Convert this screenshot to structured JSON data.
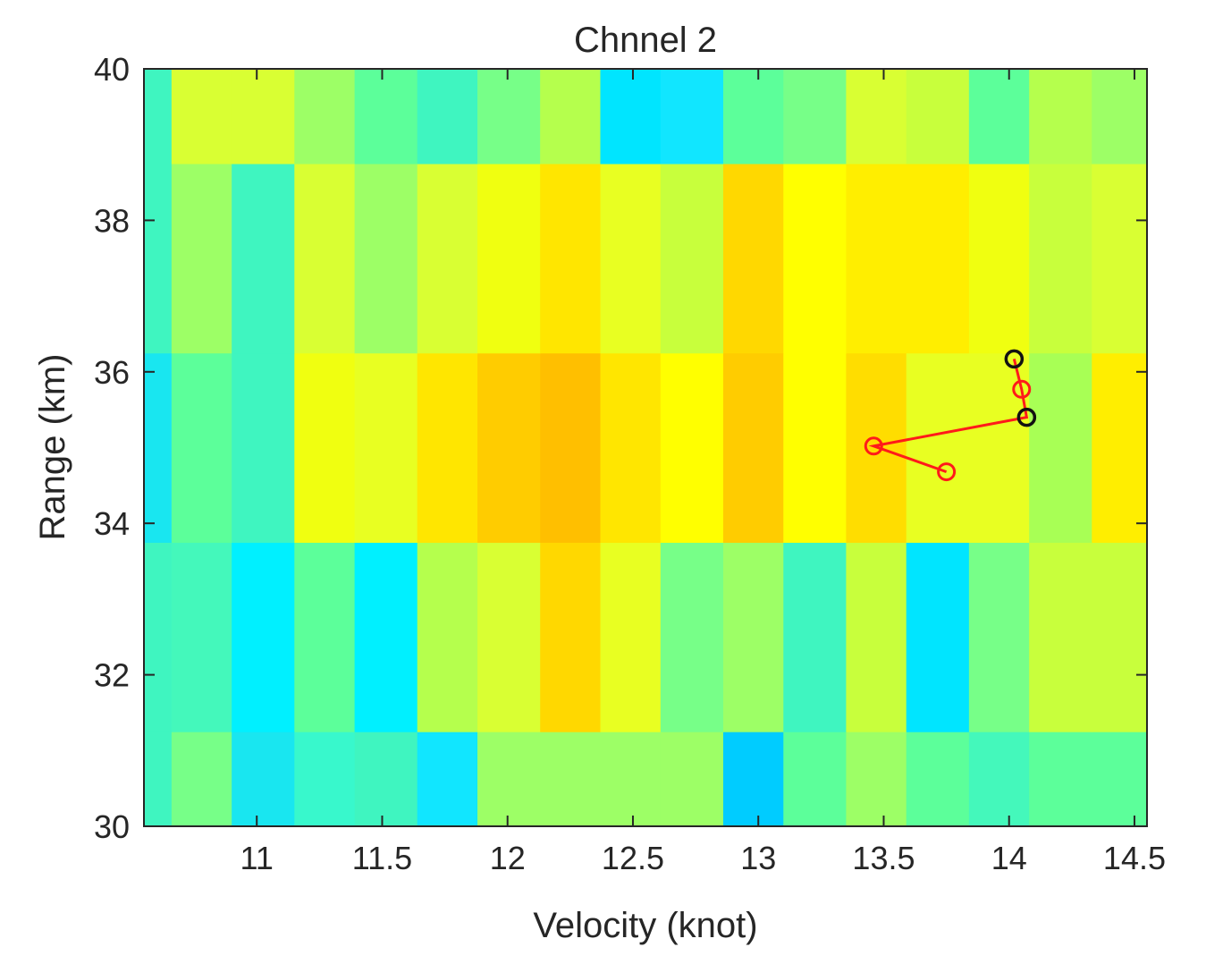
{
  "chart_data": {
    "type": "heatmap",
    "title": "Chnnel 2",
    "xlabel": "Velocity (knot)",
    "ylabel": "Range  (km)",
    "xlim": [
      10.55,
      14.55
    ],
    "ylim": [
      30,
      40
    ],
    "grid": false,
    "xticks": [
      11,
      11.5,
      12,
      12.5,
      13,
      13.5,
      14,
      14.5
    ],
    "xtick_labels": [
      "11",
      "11.5",
      "12",
      "12.5",
      "13",
      "13.5",
      "14",
      "14.5"
    ],
    "yticks": [
      30,
      32,
      34,
      36,
      38,
      40
    ],
    "ytick_labels": [
      "30",
      "32",
      "34",
      "36",
      "38",
      "40"
    ],
    "x_bin_edges": [
      10.55,
      10.66,
      10.9,
      11.15,
      11.39,
      11.64,
      11.88,
      12.13,
      12.37,
      12.61,
      12.86,
      13.1,
      13.35,
      13.59,
      13.84,
      14.08,
      14.33,
      14.55
    ],
    "y_bin_edges": [
      30,
      31.25,
      33.75,
      36.25,
      38.75,
      40
    ],
    "cell_colors": [
      [
        "#3ff5c0",
        "#77ff88",
        "#19e6f0",
        "#38f8cc",
        "#3ff5c0",
        "#11e6ff",
        "#9dff66",
        "#9dff66",
        "#9dff66",
        "#9dff66",
        "#00ccff",
        "#5cff9a",
        "#9dff66",
        "#5cff9a",
        "#44f8bb",
        "#5cff9a",
        "#5cff9a"
      ],
      [
        "#3ff5c0",
        "#44f8bb",
        "#00f0ff",
        "#5cff9a",
        "#00f0ff",
        "#b5ff4d",
        "#d9ff33",
        "#ffd800",
        "#e8ff22",
        "#77ff88",
        "#9dff66",
        "#3ff5c0",
        "#c8ff3c",
        "#00e5ff",
        "#77ff88",
        "#c8ff3c",
        "#c8ff3c"
      ],
      [
        "#19e6f0",
        "#5cff9a",
        "#3ff5c0",
        "#f0ff10",
        "#e8ff22",
        "#ffe600",
        "#ffcc00",
        "#ffbf00",
        "#ffe600",
        "#ffff00",
        "#ffcc00",
        "#ffff00",
        "#ffdd00",
        "#e8ff22",
        "#e8ff22",
        "#a8ff55",
        "#ffee00"
      ],
      [
        "#3ff5c0",
        "#9dff66",
        "#3ff5c0",
        "#d9ff33",
        "#9dff66",
        "#d9ff33",
        "#f0ff10",
        "#ffe600",
        "#e8ff22",
        "#c8ff3c",
        "#ffd800",
        "#ffff00",
        "#ffee00",
        "#ffee00",
        "#f0ff10",
        "#c8ff3c",
        "#d9ff33"
      ],
      [
        "#3ff5c0",
        "#d9ff33",
        "#d9ff33",
        "#9dff66",
        "#5cff9a",
        "#3ff5c0",
        "#77ff88",
        "#b5ff4d",
        "#00e5ff",
        "#11e6ff",
        "#5cff9a",
        "#77ff88",
        "#d9ff33",
        "#c8ff3c",
        "#5cff9a",
        "#b5ff4d",
        "#9dff66"
      ]
    ],
    "series": [
      {
        "name": "red track",
        "color": "#ff1a1a",
        "marker": "circle",
        "points": [
          [
            13.75,
            34.68
          ],
          [
            13.46,
            35.02
          ],
          [
            14.07,
            35.4
          ],
          [
            14.05,
            35.77
          ],
          [
            14.02,
            36.17
          ]
        ]
      },
      {
        "name": "black markers",
        "color": "#111111",
        "marker": "circle",
        "points": [
          [
            14.02,
            36.17
          ],
          [
            14.07,
            35.4
          ]
        ]
      }
    ]
  }
}
